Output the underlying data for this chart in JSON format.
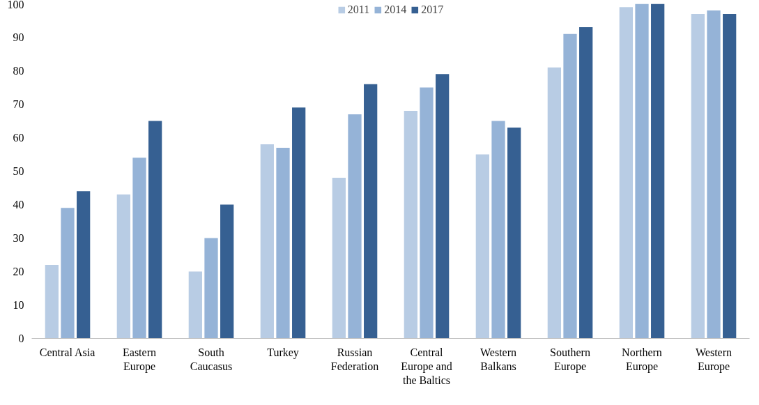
{
  "chart_data": {
    "type": "bar",
    "categories": [
      "Central Asia",
      "Eastern\nEurope",
      "South\nCaucasus",
      "Turkey",
      "Russian\nFederation",
      "Central\nEurope and\nthe Baltics",
      "Western\nBalkans",
      "Southern\nEurope",
      "Northern\nEurope",
      "Western\nEurope"
    ],
    "series": [
      {
        "name": "2011",
        "color": "#b8cce4",
        "values": [
          22,
          43,
          20,
          58,
          48,
          68,
          55,
          81,
          99,
          97
        ]
      },
      {
        "name": "2014",
        "color": "#95b3d7",
        "values": [
          39,
          54,
          30,
          57,
          67,
          75,
          65,
          91,
          100,
          98
        ]
      },
      {
        "name": "2017",
        "color": "#366092",
        "values": [
          44,
          65,
          40,
          69,
          76,
          79,
          63,
          93,
          100,
          97
        ]
      }
    ],
    "ylim": [
      0,
      100
    ],
    "yticks": [
      0,
      10,
      20,
      30,
      40,
      50,
      60,
      70,
      80,
      90,
      100
    ],
    "grid": false,
    "legend": "top"
  }
}
